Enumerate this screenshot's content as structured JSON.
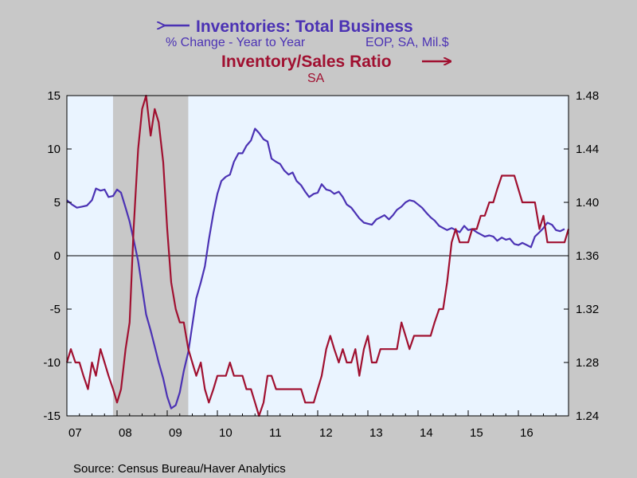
{
  "chart_data": {
    "type": "line",
    "title_left": "Inventories: Total Business",
    "subtitle_left_a": "% Change - Year to Year",
    "subtitle_left_b": "EOP, SA, Mil.$",
    "title_right": "Inventory/Sales Ratio",
    "subtitle_right": "SA",
    "source": "Source:  Census Bureau/Haver Analytics",
    "x_range": [
      2007.0,
      2017.0
    ],
    "x_ticks": [
      {
        "label": "07",
        "x": 2007.0
      },
      {
        "label": "08",
        "x": 2008.0
      },
      {
        "label": "09",
        "x": 2009.0
      },
      {
        "label": "10",
        "x": 2010.0
      },
      {
        "label": "11",
        "x": 2011.0
      },
      {
        "label": "12",
        "x": 2012.0
      },
      {
        "label": "13",
        "x": 2013.0
      },
      {
        "label": "14",
        "x": 2014.0
      },
      {
        "label": "15",
        "x": 2015.0
      },
      {
        "label": "16",
        "x": 2016.0
      }
    ],
    "y_left": {
      "range": [
        -15,
        15
      ],
      "ticks": [
        "15",
        "10",
        "5",
        "0",
        "-5",
        "-10",
        "-15"
      ]
    },
    "y_right": {
      "range": [
        1.24,
        1.48
      ],
      "ticks": [
        "1.48",
        "1.44",
        "1.40",
        "1.36",
        "1.32",
        "1.28",
        "1.24"
      ]
    },
    "recession": [
      2007.92,
      2009.42
    ],
    "zero_line": 0,
    "colors": {
      "inventories": "#4b32b4",
      "ratio": "#a01030",
      "plot_bg": "#eaf4ff",
      "recession": "#c8c8c8",
      "frame_bg": "#c8c8c8"
    },
    "series": [
      {
        "name": "Inventories: Total Business",
        "axis": "left",
        "points": [
          [
            2007.0,
            5.2
          ],
          [
            2007.1,
            4.8
          ],
          [
            2007.2,
            4.5
          ],
          [
            2007.3,
            4.6
          ],
          [
            2007.4,
            4.7
          ],
          [
            2007.5,
            5.2
          ],
          [
            2007.58,
            6.3
          ],
          [
            2007.67,
            6.1
          ],
          [
            2007.75,
            6.2
          ],
          [
            2007.83,
            5.5
          ],
          [
            2007.92,
            5.6
          ],
          [
            2008.0,
            6.2
          ],
          [
            2008.08,
            5.9
          ],
          [
            2008.17,
            4.5
          ],
          [
            2008.25,
            3.2
          ],
          [
            2008.33,
            1.5
          ],
          [
            2008.42,
            -0.5
          ],
          [
            2008.5,
            -3.0
          ],
          [
            2008.58,
            -5.5
          ],
          [
            2008.67,
            -7.0
          ],
          [
            2008.75,
            -8.5
          ],
          [
            2008.83,
            -10.0
          ],
          [
            2008.92,
            -11.5
          ],
          [
            2009.0,
            -13.2
          ],
          [
            2009.08,
            -14.3
          ],
          [
            2009.17,
            -14.0
          ],
          [
            2009.25,
            -12.8
          ],
          [
            2009.33,
            -10.8
          ],
          [
            2009.42,
            -9.0
          ],
          [
            2009.5,
            -6.5
          ],
          [
            2009.58,
            -4.0
          ],
          [
            2009.67,
            -2.5
          ],
          [
            2009.75,
            -1.0
          ],
          [
            2009.83,
            1.5
          ],
          [
            2009.92,
            4.0
          ],
          [
            2010.0,
            5.8
          ],
          [
            2010.08,
            7.0
          ],
          [
            2010.17,
            7.4
          ],
          [
            2010.25,
            7.6
          ],
          [
            2010.33,
            8.8
          ],
          [
            2010.42,
            9.6
          ],
          [
            2010.5,
            9.6
          ],
          [
            2010.58,
            10.3
          ],
          [
            2010.67,
            10.8
          ],
          [
            2010.75,
            11.9
          ],
          [
            2010.83,
            11.5
          ],
          [
            2010.92,
            10.9
          ],
          [
            2011.0,
            10.7
          ],
          [
            2011.08,
            9.1
          ],
          [
            2011.17,
            8.8
          ],
          [
            2011.25,
            8.6
          ],
          [
            2011.33,
            8.0
          ],
          [
            2011.42,
            7.6
          ],
          [
            2011.5,
            7.8
          ],
          [
            2011.58,
            7.0
          ],
          [
            2011.67,
            6.6
          ],
          [
            2011.75,
            6.0
          ],
          [
            2011.83,
            5.5
          ],
          [
            2011.92,
            5.8
          ],
          [
            2012.0,
            5.9
          ],
          [
            2012.08,
            6.7
          ],
          [
            2012.17,
            6.2
          ],
          [
            2012.25,
            6.1
          ],
          [
            2012.33,
            5.8
          ],
          [
            2012.42,
            6.0
          ],
          [
            2012.5,
            5.5
          ],
          [
            2012.58,
            4.8
          ],
          [
            2012.67,
            4.5
          ],
          [
            2012.75,
            4.0
          ],
          [
            2012.83,
            3.5
          ],
          [
            2012.92,
            3.1
          ],
          [
            2013.0,
            3.0
          ],
          [
            2013.08,
            2.9
          ],
          [
            2013.17,
            3.4
          ],
          [
            2013.25,
            3.6
          ],
          [
            2013.33,
            3.8
          ],
          [
            2013.42,
            3.4
          ],
          [
            2013.5,
            3.8
          ],
          [
            2013.58,
            4.3
          ],
          [
            2013.67,
            4.6
          ],
          [
            2013.75,
            5.0
          ],
          [
            2013.83,
            5.2
          ],
          [
            2013.92,
            5.1
          ],
          [
            2014.0,
            4.8
          ],
          [
            2014.08,
            4.5
          ],
          [
            2014.17,
            4.0
          ],
          [
            2014.25,
            3.6
          ],
          [
            2014.33,
            3.3
          ],
          [
            2014.42,
            2.8
          ],
          [
            2014.5,
            2.6
          ],
          [
            2014.58,
            2.4
          ],
          [
            2014.67,
            2.6
          ],
          [
            2014.75,
            2.4
          ],
          [
            2014.83,
            2.2
          ],
          [
            2014.92,
            2.8
          ],
          [
            2015.0,
            2.4
          ],
          [
            2015.08,
            2.5
          ],
          [
            2015.17,
            2.2
          ],
          [
            2015.25,
            2.0
          ],
          [
            2015.33,
            1.8
          ],
          [
            2015.42,
            1.9
          ],
          [
            2015.5,
            1.8
          ],
          [
            2015.58,
            1.4
          ],
          [
            2015.67,
            1.7
          ],
          [
            2015.75,
            1.5
          ],
          [
            2015.83,
            1.6
          ],
          [
            2015.92,
            1.1
          ],
          [
            2016.0,
            1.0
          ],
          [
            2016.08,
            1.2
          ],
          [
            2016.17,
            1.0
          ],
          [
            2016.25,
            0.8
          ],
          [
            2016.33,
            1.8
          ],
          [
            2016.42,
            2.2
          ],
          [
            2016.5,
            2.6
          ],
          [
            2016.58,
            3.1
          ],
          [
            2016.67,
            2.9
          ],
          [
            2016.75,
            2.4
          ],
          [
            2016.83,
            2.3
          ],
          [
            2016.92,
            2.5
          ]
        ]
      },
      {
        "name": "Inventory/Sales Ratio",
        "axis": "right",
        "points": [
          [
            2007.0,
            1.28
          ],
          [
            2007.08,
            1.29
          ],
          [
            2007.17,
            1.28
          ],
          [
            2007.25,
            1.28
          ],
          [
            2007.33,
            1.27
          ],
          [
            2007.42,
            1.26
          ],
          [
            2007.5,
            1.28
          ],
          [
            2007.58,
            1.27
          ],
          [
            2007.67,
            1.29
          ],
          [
            2007.75,
            1.28
          ],
          [
            2007.83,
            1.27
          ],
          [
            2007.92,
            1.26
          ],
          [
            2008.0,
            1.25
          ],
          [
            2008.08,
            1.26
          ],
          [
            2008.17,
            1.29
          ],
          [
            2008.25,
            1.31
          ],
          [
            2008.33,
            1.38
          ],
          [
            2008.42,
            1.44
          ],
          [
            2008.5,
            1.47
          ],
          [
            2008.58,
            1.48
          ],
          [
            2008.67,
            1.45
          ],
          [
            2008.75,
            1.47
          ],
          [
            2008.83,
            1.46
          ],
          [
            2008.92,
            1.43
          ],
          [
            2009.0,
            1.38
          ],
          [
            2009.08,
            1.34
          ],
          [
            2009.17,
            1.32
          ],
          [
            2009.25,
            1.31
          ],
          [
            2009.33,
            1.31
          ],
          [
            2009.42,
            1.29
          ],
          [
            2009.5,
            1.28
          ],
          [
            2009.58,
            1.27
          ],
          [
            2009.67,
            1.28
          ],
          [
            2009.75,
            1.26
          ],
          [
            2009.83,
            1.25
          ],
          [
            2009.92,
            1.26
          ],
          [
            2010.0,
            1.27
          ],
          [
            2010.08,
            1.27
          ],
          [
            2010.17,
            1.27
          ],
          [
            2010.25,
            1.28
          ],
          [
            2010.33,
            1.27
          ],
          [
            2010.42,
            1.27
          ],
          [
            2010.5,
            1.27
          ],
          [
            2010.58,
            1.26
          ],
          [
            2010.67,
            1.26
          ],
          [
            2010.75,
            1.25
          ],
          [
            2010.83,
            1.24
          ],
          [
            2010.92,
            1.25
          ],
          [
            2011.0,
            1.27
          ],
          [
            2011.08,
            1.27
          ],
          [
            2011.17,
            1.26
          ],
          [
            2011.25,
            1.26
          ],
          [
            2011.33,
            1.26
          ],
          [
            2011.42,
            1.26
          ],
          [
            2011.5,
            1.26
          ],
          [
            2011.58,
            1.26
          ],
          [
            2011.67,
            1.26
          ],
          [
            2011.75,
            1.25
          ],
          [
            2011.83,
            1.25
          ],
          [
            2011.92,
            1.25
          ],
          [
            2012.0,
            1.26
          ],
          [
            2012.08,
            1.27
          ],
          [
            2012.17,
            1.29
          ],
          [
            2012.25,
            1.3
          ],
          [
            2012.33,
            1.29
          ],
          [
            2012.42,
            1.28
          ],
          [
            2012.5,
            1.29
          ],
          [
            2012.58,
            1.28
          ],
          [
            2012.67,
            1.28
          ],
          [
            2012.75,
            1.29
          ],
          [
            2012.83,
            1.27
          ],
          [
            2012.92,
            1.29
          ],
          [
            2013.0,
            1.3
          ],
          [
            2013.08,
            1.28
          ],
          [
            2013.17,
            1.28
          ],
          [
            2013.25,
            1.29
          ],
          [
            2013.33,
            1.29
          ],
          [
            2013.42,
            1.29
          ],
          [
            2013.5,
            1.29
          ],
          [
            2013.58,
            1.29
          ],
          [
            2013.67,
            1.31
          ],
          [
            2013.75,
            1.3
          ],
          [
            2013.83,
            1.29
          ],
          [
            2013.92,
            1.3
          ],
          [
            2014.0,
            1.3
          ],
          [
            2014.08,
            1.3
          ],
          [
            2014.17,
            1.3
          ],
          [
            2014.25,
            1.3
          ],
          [
            2014.33,
            1.31
          ],
          [
            2014.42,
            1.32
          ],
          [
            2014.5,
            1.32
          ],
          [
            2014.58,
            1.34
          ],
          [
            2014.67,
            1.37
          ],
          [
            2014.75,
            1.38
          ],
          [
            2014.83,
            1.37
          ],
          [
            2014.92,
            1.37
          ],
          [
            2015.0,
            1.37
          ],
          [
            2015.08,
            1.38
          ],
          [
            2015.17,
            1.38
          ],
          [
            2015.25,
            1.39
          ],
          [
            2015.33,
            1.39
          ],
          [
            2015.42,
            1.4
          ],
          [
            2015.5,
            1.4
          ],
          [
            2015.58,
            1.41
          ],
          [
            2015.67,
            1.42
          ],
          [
            2015.75,
            1.42
          ],
          [
            2015.83,
            1.42
          ],
          [
            2015.92,
            1.42
          ],
          [
            2016.0,
            1.41
          ],
          [
            2016.08,
            1.4
          ],
          [
            2016.17,
            1.4
          ],
          [
            2016.25,
            1.4
          ],
          [
            2016.33,
            1.4
          ],
          [
            2016.42,
            1.38
          ],
          [
            2016.5,
            1.39
          ],
          [
            2016.58,
            1.37
          ],
          [
            2016.67,
            1.37
          ],
          [
            2016.75,
            1.37
          ],
          [
            2016.83,
            1.37
          ],
          [
            2016.92,
            1.37
          ],
          [
            2017.0,
            1.38
          ]
        ]
      }
    ]
  }
}
